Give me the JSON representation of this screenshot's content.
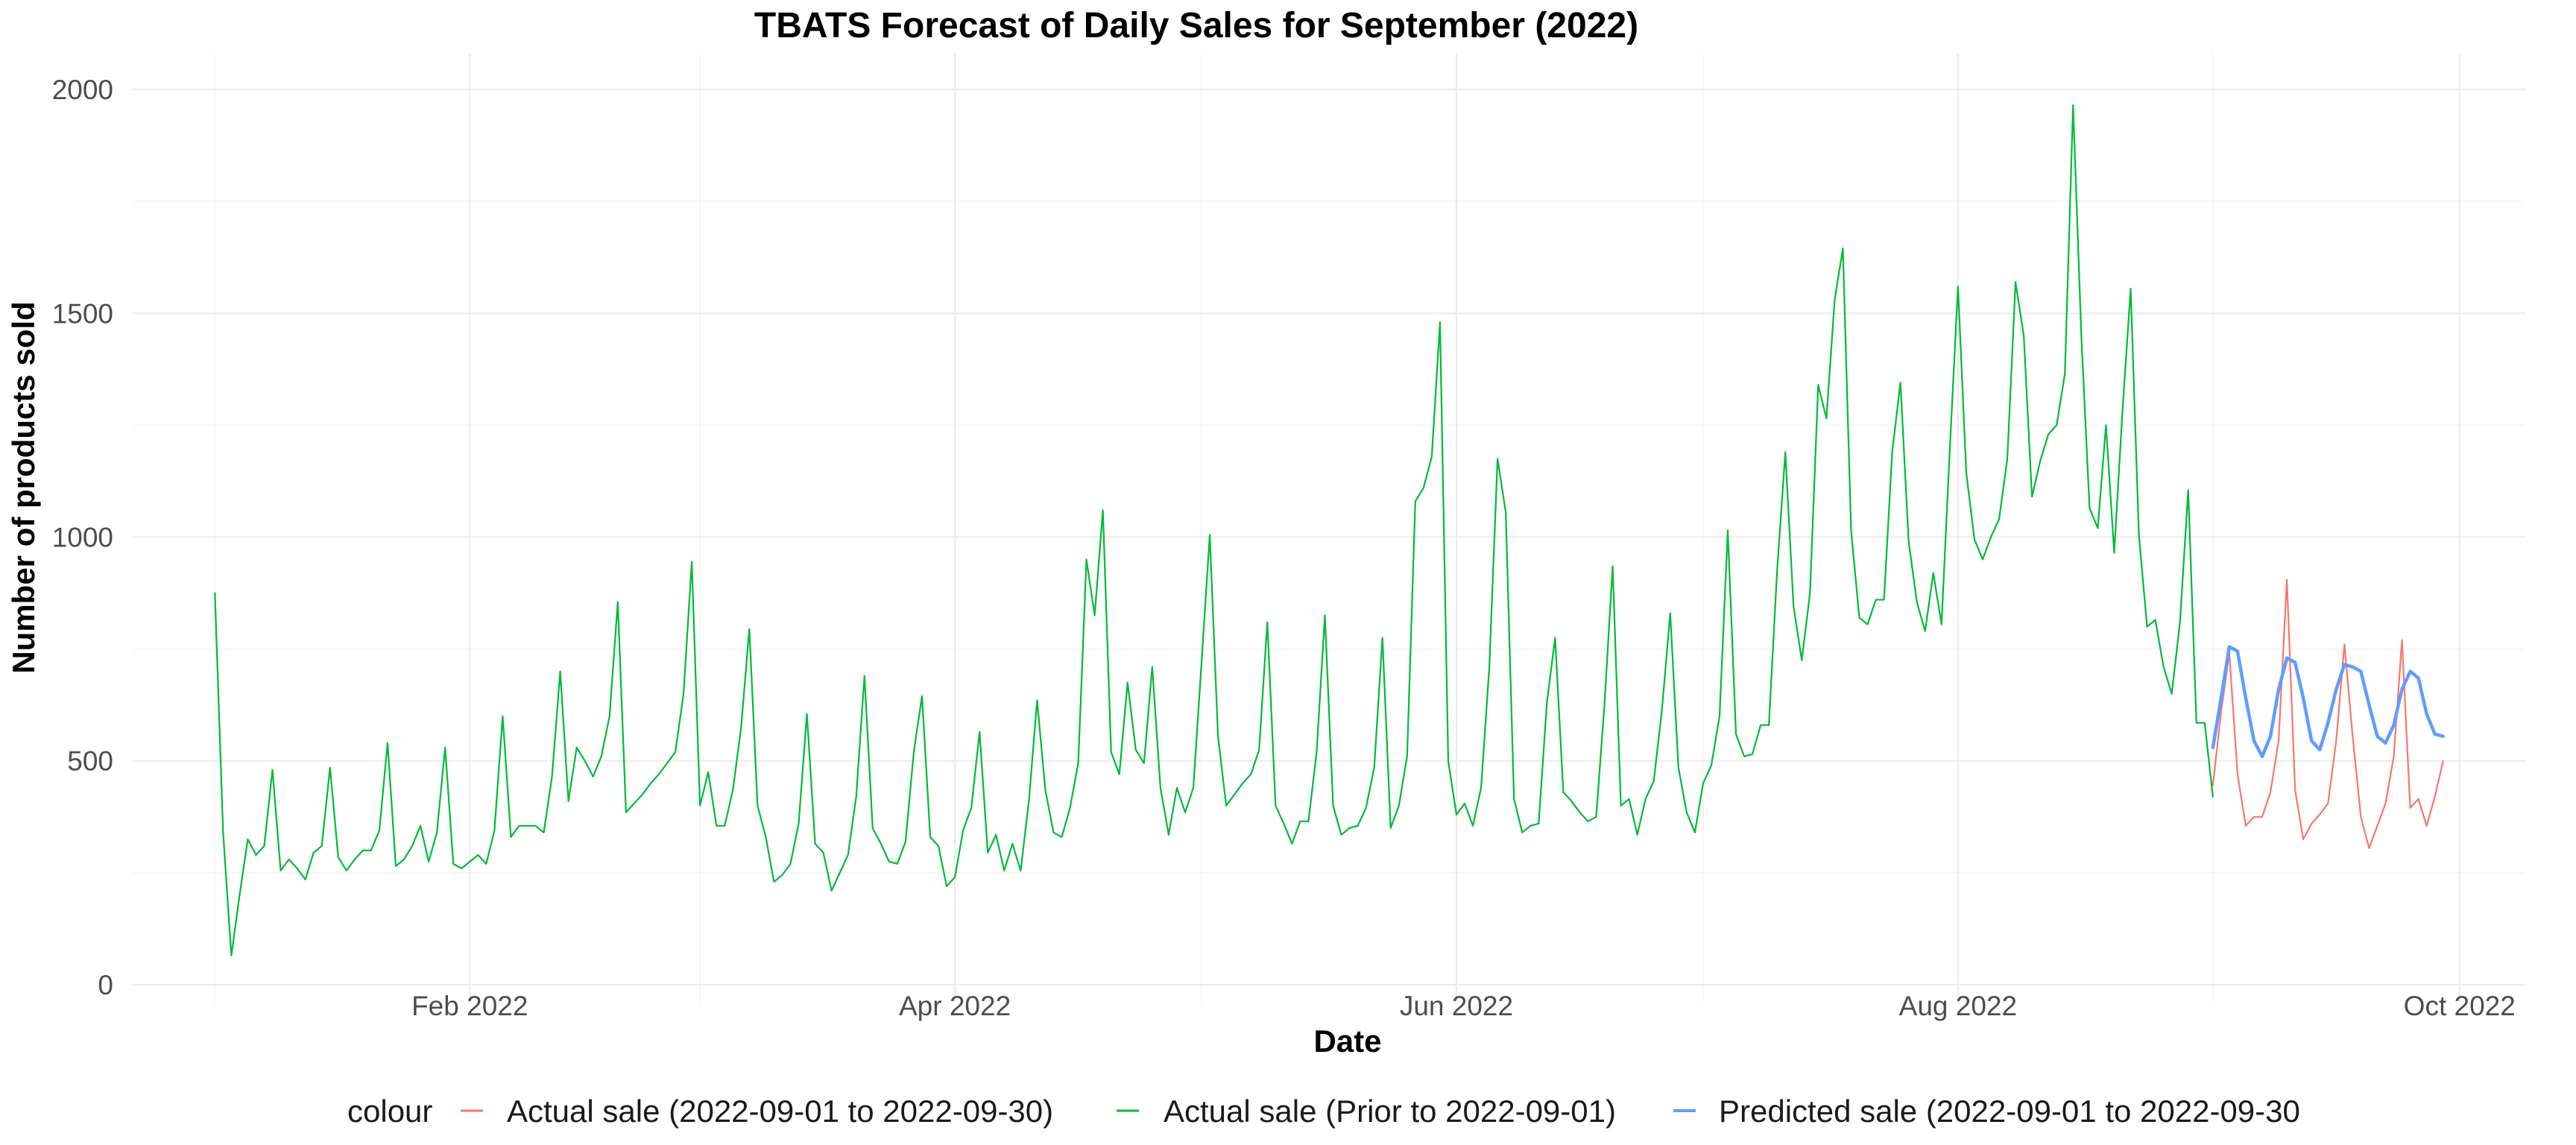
{
  "chart_data": {
    "type": "line",
    "title": "TBATS Forecast of Daily Sales for September (2022)",
    "xlabel": "Date",
    "ylabel": "Number of products sold",
    "x_type": "date",
    "xlim": [
      "2021-12-22",
      "2022-10-09"
    ],
    "ylim": [
      -40,
      2080
    ],
    "x_ticks": [
      {
        "date": "2022-02-01",
        "label": "Feb 2022"
      },
      {
        "date": "2022-04-01",
        "label": "Apr 2022"
      },
      {
        "date": "2022-06-01",
        "label": "Jun 2022"
      },
      {
        "date": "2022-08-01",
        "label": "Aug 2022"
      },
      {
        "date": "2022-10-01",
        "label": "Oct 2022"
      }
    ],
    "x_minor_ticks": [
      "2022-01-01",
      "2022-03-01",
      "2022-05-01",
      "2022-07-01",
      "2022-09-01"
    ],
    "y_ticks": [
      0,
      500,
      1000,
      1500,
      2000
    ],
    "y_minor_ticks": [
      250,
      750,
      1250,
      1750
    ],
    "grid": true,
    "legend": {
      "position": "bottom",
      "title": "colour",
      "entries": [
        "Actual sale (2022-09-01 to 2022-09-30)",
        "Actual sale (Prior to 2022-09-01)",
        "Predicted sale (2022-09-01 to 2022-09-30"
      ]
    },
    "series": [
      {
        "name": "Actual sale (Prior to 2022-09-01)",
        "color": "#00ba38",
        "line_width": 2.2,
        "start_date": "2022-01-01",
        "values": [
          875,
          340,
          65,
          200,
          325,
          290,
          310,
          480,
          255,
          280,
          260,
          235,
          295,
          310,
          485,
          285,
          255,
          280,
          300,
          300,
          345,
          540,
          265,
          280,
          310,
          355,
          275,
          340,
          530,
          270,
          260,
          275,
          290,
          270,
          345,
          600,
          330,
          355,
          355,
          355,
          340,
          465,
          700,
          410,
          530,
          500,
          465,
          510,
          600,
          855,
          385,
          405,
          425,
          450,
          470,
          495,
          520,
          650,
          945,
          400,
          475,
          355,
          355,
          435,
          575,
          795,
          400,
          330,
          230,
          245,
          270,
          360,
          605,
          315,
          295,
          210,
          250,
          290,
          420,
          690,
          350,
          315,
          275,
          270,
          320,
          520,
          645,
          330,
          310,
          220,
          240,
          345,
          395,
          565,
          295,
          335,
          255,
          315,
          255,
          410,
          635,
          435,
          340,
          330,
          395,
          495,
          950,
          825,
          1060,
          520,
          470,
          675,
          525,
          495,
          710,
          440,
          335,
          440,
          385,
          440,
          720,
          1005,
          555,
          400,
          425,
          450,
          470,
          525,
          810,
          400,
          360,
          315,
          365,
          365,
          520,
          825,
          400,
          335,
          350,
          355,
          395,
          485,
          775,
          350,
          400,
          510,
          1080,
          1110,
          1180,
          1480,
          500,
          380,
          405,
          355,
          440,
          710,
          1175,
          1055,
          415,
          340,
          355,
          360,
          630,
          775,
          430,
          410,
          385,
          365,
          375,
          625,
          935,
          400,
          415,
          335,
          415,
          455,
          615,
          830,
          485,
          385,
          340,
          450,
          490,
          600,
          1015,
          560,
          510,
          515,
          580,
          580,
          925,
          1190,
          845,
          725,
          875,
          1340,
          1265,
          1530,
          1645,
          1015,
          820,
          805,
          860,
          860,
          1190,
          1345,
          990,
          855,
          790,
          920,
          805,
          1195,
          1560,
          1145,
          995,
          950,
          1000,
          1040,
          1175,
          1570,
          1450,
          1090,
          1170,
          1230,
          1250,
          1365,
          1965,
          1450,
          1065,
          1020,
          1250,
          965,
          1280,
          1555,
          1005,
          800,
          815,
          710,
          650,
          810,
          1105,
          585,
          585,
          420
        ]
      },
      {
        "name": "Actual sale (2022-09-01 to 2022-09-30)",
        "color": "#f8766d",
        "line_width": 2.2,
        "start_date": "2022-09-01",
        "values": [
          445,
          610,
          740,
          470,
          355,
          375,
          375,
          430,
          545,
          905,
          435,
          325,
          360,
          380,
          405,
          545,
          760,
          555,
          375,
          305,
          355,
          405,
          510,
          770,
          395,
          415,
          355,
          420,
          500
        ]
      },
      {
        "name": "Predicted sale (2022-09-01 to 2022-09-30",
        "color": "#619cff",
        "line_width": 4.5,
        "start_date": "2022-09-01",
        "values": [
          530,
          640,
          755,
          745,
          640,
          545,
          510,
          555,
          660,
          730,
          720,
          640,
          545,
          525,
          585,
          660,
          715,
          710,
          700,
          625,
          555,
          540,
          580,
          660,
          700,
          685,
          605,
          560,
          555
        ]
      }
    ]
  }
}
